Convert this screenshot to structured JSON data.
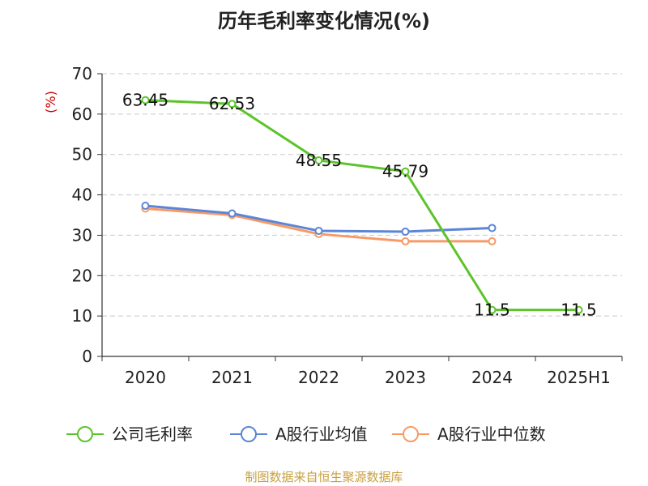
{
  "chart_data": {
    "type": "line",
    "title": "历年毛利率变化情况(%)",
    "ylabel": "(%)",
    "ylim": [
      0,
      70
    ],
    "yticks": [
      0,
      10,
      20,
      30,
      40,
      50,
      60,
      70
    ],
    "grid": true,
    "categories": [
      "2020",
      "2021",
      "2022",
      "2023",
      "2024",
      "2025H1"
    ],
    "series": [
      {
        "name": "公司毛利率",
        "color": "#5cc42a",
        "values": [
          63.45,
          62.53,
          48.55,
          45.79,
          11.5,
          11.5
        ],
        "labels": [
          "63.45",
          "62.53",
          "48.55",
          "45.79",
          "11.5",
          "11.5"
        ]
      },
      {
        "name": "A股行业均值",
        "color": "#5b86d6",
        "values": [
          37.3,
          35.4,
          31.1,
          30.9,
          31.8,
          null
        ]
      },
      {
        "name": "A股行业中位数",
        "color": "#f79a68",
        "values": [
          36.6,
          35.0,
          30.3,
          28.5,
          28.5,
          null
        ]
      }
    ],
    "legend_position": "bottom",
    "source": "制图数据来自恒生聚源数据库"
  }
}
